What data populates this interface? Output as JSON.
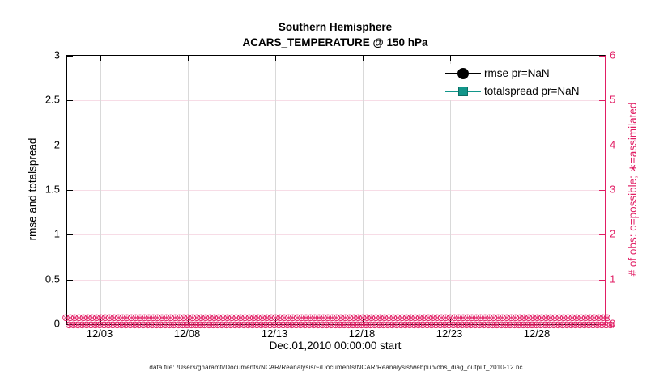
{
  "figure": {
    "title": "Southern Hemisphere",
    "subtitle": "ACARS_TEMPERATURE @ 150 hPa",
    "caption": "data file: /Users/gharamti/Documents/NCAR/Reanalysis/~/Documents/NCAR/Reanalysis/webpub/obs_diag_output_2010-12.nc"
  },
  "axes": {
    "x": {
      "label": "Dec.01,2010 00:00:00 start",
      "ticks": [
        "12/03",
        "12/08",
        "12/13",
        "12/18",
        "12/23",
        "12/28"
      ]
    },
    "left": {
      "label": "rmse and totalspread",
      "ticks": [
        "0",
        "0.5",
        "1",
        "1.5",
        "2",
        "2.5",
        "3"
      ]
    },
    "right": {
      "label": "# of obs: o=possible; ∗=assimilated",
      "ticks": [
        "0",
        "1",
        "2",
        "3",
        "4",
        "5",
        "6"
      ]
    }
  },
  "legend": {
    "items": [
      {
        "label": "rmse pr=NaN",
        "marker": "circle",
        "color": "#000000",
        "edge": "#000000"
      },
      {
        "label": "totalspread pr=NaN",
        "marker": "square",
        "color": "#12968a",
        "edge": "#0c6f65"
      }
    ]
  },
  "obs_band": {
    "glyph": "⊛",
    "rows": 2,
    "count": 130,
    "note": "dense row of pink o/∗ markers at zero along the whole x-axis"
  },
  "colors": {
    "accent_pink": "#e11e64",
    "pink_grid": "#f7dce6",
    "gray_grid": "#d9d9d9",
    "teal": "#12968a",
    "black": "#000000"
  },
  "chart_data": {
    "type": "line",
    "title": "Southern Hemisphere",
    "subtitle": "ACARS_TEMPERATURE @ 150 hPa",
    "xlabel": "Dec.01,2010 00:00:00 start",
    "ylabel": "rmse and totalspread",
    "y2label": "# of obs: o=possible; ∗=assimilated",
    "x_ticks": [
      "12/03",
      "12/08",
      "12/13",
      "12/18",
      "12/23",
      "12/28"
    ],
    "x_range_days": [
      "12/01",
      "12/31"
    ],
    "ylim": [
      0,
      3
    ],
    "y2lim": [
      0,
      6
    ],
    "grid": true,
    "legend_position": "top-right-inside",
    "series": [
      {
        "name": "rmse pr=NaN",
        "axis": "left",
        "color": "#000000",
        "marker": "filled-circle",
        "values": "all NaN - no curve drawn"
      },
      {
        "name": "totalspread pr=NaN",
        "axis": "left",
        "color": "#12968a",
        "marker": "filled-square",
        "values": "all NaN - no curve drawn"
      },
      {
        "name": "# of obs possible (o)",
        "axis": "right",
        "color": "#e11e64",
        "marker": "o",
        "values": "0 at every time step Dec 01-31"
      },
      {
        "name": "# of obs assimilated (∗)",
        "axis": "right",
        "color": "#e11e64",
        "marker": "∗",
        "values": "0 at every time step Dec 01-31"
      }
    ]
  }
}
